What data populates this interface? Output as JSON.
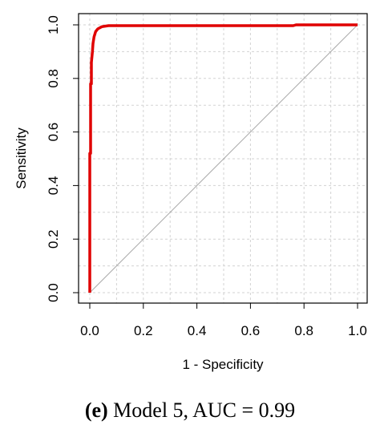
{
  "chart_data": {
    "type": "line",
    "xlabel": "1 - Specificity",
    "ylabel": "Sensitivity",
    "xlim": [
      0,
      1
    ],
    "ylim": [
      0,
      1
    ],
    "xticks": [
      "0.0",
      "0.2",
      "0.4",
      "0.6",
      "0.8",
      "1.0"
    ],
    "yticks": [
      "0.0",
      "0.2",
      "0.4",
      "0.6",
      "0.8",
      "1.0"
    ],
    "grid": true,
    "series": [
      {
        "color": "#e00000",
        "x": [
          0.0,
          0.0,
          0.003,
          0.003,
          0.006,
          0.006,
          0.01,
          0.012,
          0.016,
          0.022,
          0.03,
          0.045,
          0.07,
          0.2,
          0.5,
          0.76,
          0.77,
          1.0
        ],
        "y": [
          0.0,
          0.52,
          0.52,
          0.78,
          0.78,
          0.86,
          0.9,
          0.93,
          0.955,
          0.975,
          0.985,
          0.993,
          0.997,
          0.997,
          0.997,
          0.997,
          1.0,
          1.0
        ]
      },
      {
        "color": "#aaaaaa",
        "x": [
          0,
          1
        ],
        "y": [
          0,
          1
        ]
      }
    ]
  },
  "caption": {
    "label": "(e)",
    "text": "Model 5, AUC = 0.99"
  }
}
